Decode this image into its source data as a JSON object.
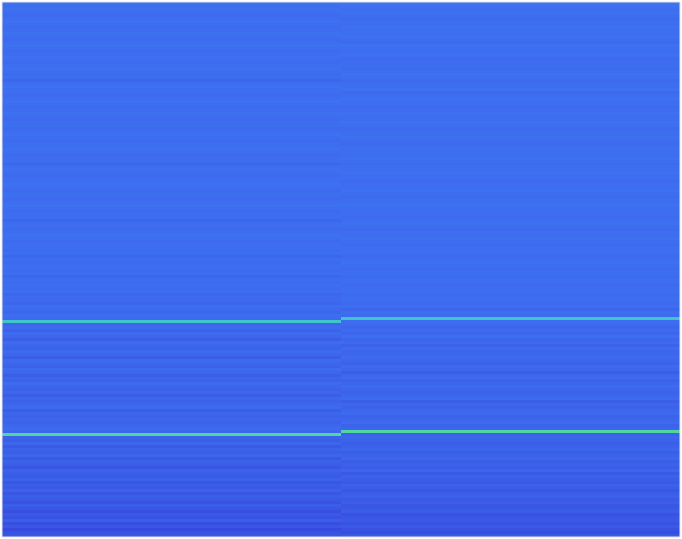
{
  "chart_data": {
    "type": "heatmap",
    "xlim": [
      0,
      2
    ],
    "ylim": [
      0,
      180
    ],
    "zlim": [
      0,
      1
    ],
    "tick_labels": false,
    "cells": [
      [
        0.31,
        0.32
      ],
      [
        0.3,
        0.31
      ],
      [
        0.31,
        0.3
      ],
      [
        0.3,
        0.31
      ],
      [
        0.29,
        0.3
      ],
      [
        0.3,
        0.29
      ],
      [
        0.31,
        0.3
      ],
      [
        0.3,
        0.3
      ],
      [
        0.29,
        0.31
      ],
      [
        0.3,
        0.3
      ],
      [
        0.31,
        0.3
      ],
      [
        0.3,
        0.31
      ],
      [
        0.29,
        0.3
      ],
      [
        0.3,
        0.29
      ],
      [
        0.31,
        0.31
      ],
      [
        0.3,
        0.3
      ],
      [
        0.29,
        0.3
      ],
      [
        0.3,
        0.31
      ],
      [
        0.31,
        0.3
      ],
      [
        0.3,
        0.29
      ],
      [
        0.29,
        0.3
      ],
      [
        0.3,
        0.3
      ],
      [
        0.31,
        0.29
      ],
      [
        0.3,
        0.3
      ],
      [
        0.29,
        0.31
      ],
      [
        0.3,
        0.3
      ],
      [
        0.28,
        0.29
      ],
      [
        0.3,
        0.3
      ],
      [
        0.31,
        0.3
      ],
      [
        0.3,
        0.31
      ],
      [
        0.3,
        0.29
      ],
      [
        0.29,
        0.3
      ],
      [
        0.3,
        0.31
      ],
      [
        0.31,
        0.3
      ],
      [
        0.3,
        0.3
      ],
      [
        0.29,
        0.29
      ],
      [
        0.3,
        0.3
      ],
      [
        0.31,
        0.31
      ],
      [
        0.3,
        0.3
      ],
      [
        0.29,
        0.3
      ],
      [
        0.3,
        0.31
      ],
      [
        0.3,
        0.3
      ],
      [
        0.29,
        0.29
      ],
      [
        0.3,
        0.3
      ],
      [
        0.31,
        0.3
      ],
      [
        0.3,
        0.31
      ],
      [
        0.29,
        0.3
      ],
      [
        0.3,
        0.29
      ],
      [
        0.3,
        0.3
      ],
      [
        0.31,
        0.3
      ],
      [
        0.3,
        0.3
      ],
      [
        0.29,
        0.3
      ],
      [
        0.3,
        0.31
      ],
      [
        0.3,
        0.3
      ],
      [
        0.28,
        0.29
      ],
      [
        0.3,
        0.3
      ],
      [
        0.31,
        0.3
      ],
      [
        0.3,
        0.31
      ],
      [
        0.29,
        0.3
      ],
      [
        0.3,
        0.3
      ],
      [
        0.3,
        0.29
      ],
      [
        0.31,
        0.3
      ],
      [
        0.3,
        0.3
      ],
      [
        0.29,
        0.31
      ],
      [
        0.3,
        0.3
      ],
      [
        0.3,
        0.29
      ],
      [
        0.29,
        0.3
      ],
      [
        0.3,
        0.3
      ],
      [
        0.31,
        0.31
      ],
      [
        0.3,
        0.3
      ],
      [
        0.29,
        0.3
      ],
      [
        0.3,
        0.3
      ],
      [
        0.3,
        0.29
      ],
      [
        0.28,
        0.3
      ],
      [
        0.3,
        0.31
      ],
      [
        0.3,
        0.3
      ],
      [
        0.29,
        0.29
      ],
      [
        0.3,
        0.3
      ],
      [
        0.31,
        0.3
      ],
      [
        0.3,
        0.31
      ],
      [
        0.29,
        0.3
      ],
      [
        0.3,
        0.29
      ],
      [
        0.3,
        0.3
      ],
      [
        0.29,
        0.3
      ],
      [
        0.3,
        0.3
      ],
      [
        0.28,
        0.29
      ],
      [
        0.3,
        0.3
      ],
      [
        0.29,
        0.31
      ],
      [
        0.3,
        0.3
      ],
      [
        0.3,
        0.29
      ],
      [
        0.29,
        0.3
      ],
      [
        0.3,
        0.3
      ],
      [
        0.28,
        0.29
      ],
      [
        0.3,
        0.3
      ],
      [
        0.29,
        0.3
      ],
      [
        0.3,
        0.29
      ],
      [
        0.29,
        0.3
      ],
      [
        0.3,
        0.3
      ],
      [
        0.28,
        0.29
      ],
      [
        0.29,
        0.3
      ],
      [
        0.29,
        0.3
      ],
      [
        0.28,
        0.29
      ],
      [
        0.3,
        0.3
      ],
      [
        0.29,
        0.28
      ],
      [
        0.28,
        0.3
      ],
      [
        0.3,
        0.29
      ],
      [
        0.29,
        0.68
      ],
      [
        0.68,
        0.3
      ],
      [
        0.28,
        0.29
      ],
      [
        0.29,
        0.28
      ],
      [
        0.27,
        0.29
      ],
      [
        0.29,
        0.28
      ],
      [
        0.28,
        0.3
      ],
      [
        0.26,
        0.28
      ],
      [
        0.29,
        0.29
      ],
      [
        0.28,
        0.27
      ],
      [
        0.27,
        0.29
      ],
      [
        0.29,
        0.28
      ],
      [
        0.28,
        0.28
      ],
      [
        0.26,
        0.29
      ],
      [
        0.29,
        0.28
      ],
      [
        0.28,
        0.27
      ],
      [
        0.27,
        0.29
      ],
      [
        0.29,
        0.28
      ],
      [
        0.28,
        0.26
      ],
      [
        0.26,
        0.28
      ],
      [
        0.28,
        0.29
      ],
      [
        0.27,
        0.27
      ],
      [
        0.29,
        0.28
      ],
      [
        0.28,
        0.29
      ],
      [
        0.27,
        0.28
      ],
      [
        0.28,
        0.27
      ],
      [
        0.26,
        0.28
      ],
      [
        0.28,
        0.29
      ],
      [
        0.27,
        0.26
      ],
      [
        0.28,
        0.28
      ],
      [
        0.29,
        0.27
      ],
      [
        0.26,
        0.28
      ],
      [
        0.28,
        0.29
      ],
      [
        0.27,
        0.27
      ],
      [
        0.28,
        0.28
      ],
      [
        0.27,
        0.29
      ],
      [
        0.28,
        0.27
      ],
      [
        0.29,
        0.28
      ],
      [
        0.28,
        0.78
      ],
      [
        0.78,
        0.27
      ],
      [
        0.27,
        0.28
      ],
      [
        0.26,
        0.27
      ],
      [
        0.28,
        0.26
      ],
      [
        0.25,
        0.27
      ],
      [
        0.27,
        0.28
      ],
      [
        0.26,
        0.26
      ],
      [
        0.28,
        0.27
      ],
      [
        0.25,
        0.28
      ],
      [
        0.27,
        0.26
      ],
      [
        0.26,
        0.27
      ],
      [
        0.24,
        0.26
      ],
      [
        0.27,
        0.28
      ],
      [
        0.26,
        0.25
      ],
      [
        0.25,
        0.27
      ],
      [
        0.27,
        0.26
      ],
      [
        0.24,
        0.25
      ],
      [
        0.26,
        0.27
      ],
      [
        0.25,
        0.26
      ],
      [
        0.27,
        0.24
      ],
      [
        0.24,
        0.26
      ],
      [
        0.26,
        0.27
      ],
      [
        0.25,
        0.25
      ],
      [
        0.23,
        0.26
      ],
      [
        0.26,
        0.24
      ],
      [
        0.24,
        0.25
      ],
      [
        0.22,
        0.26
      ],
      [
        0.25,
        0.23
      ],
      [
        0.23,
        0.24
      ],
      [
        0.26,
        0.25
      ],
      [
        0.22,
        0.23
      ],
      [
        0.24,
        0.25
      ],
      [
        0.21,
        0.23
      ],
      [
        0.23,
        0.22
      ],
      [
        0.24,
        0.25
      ]
    ]
  }
}
